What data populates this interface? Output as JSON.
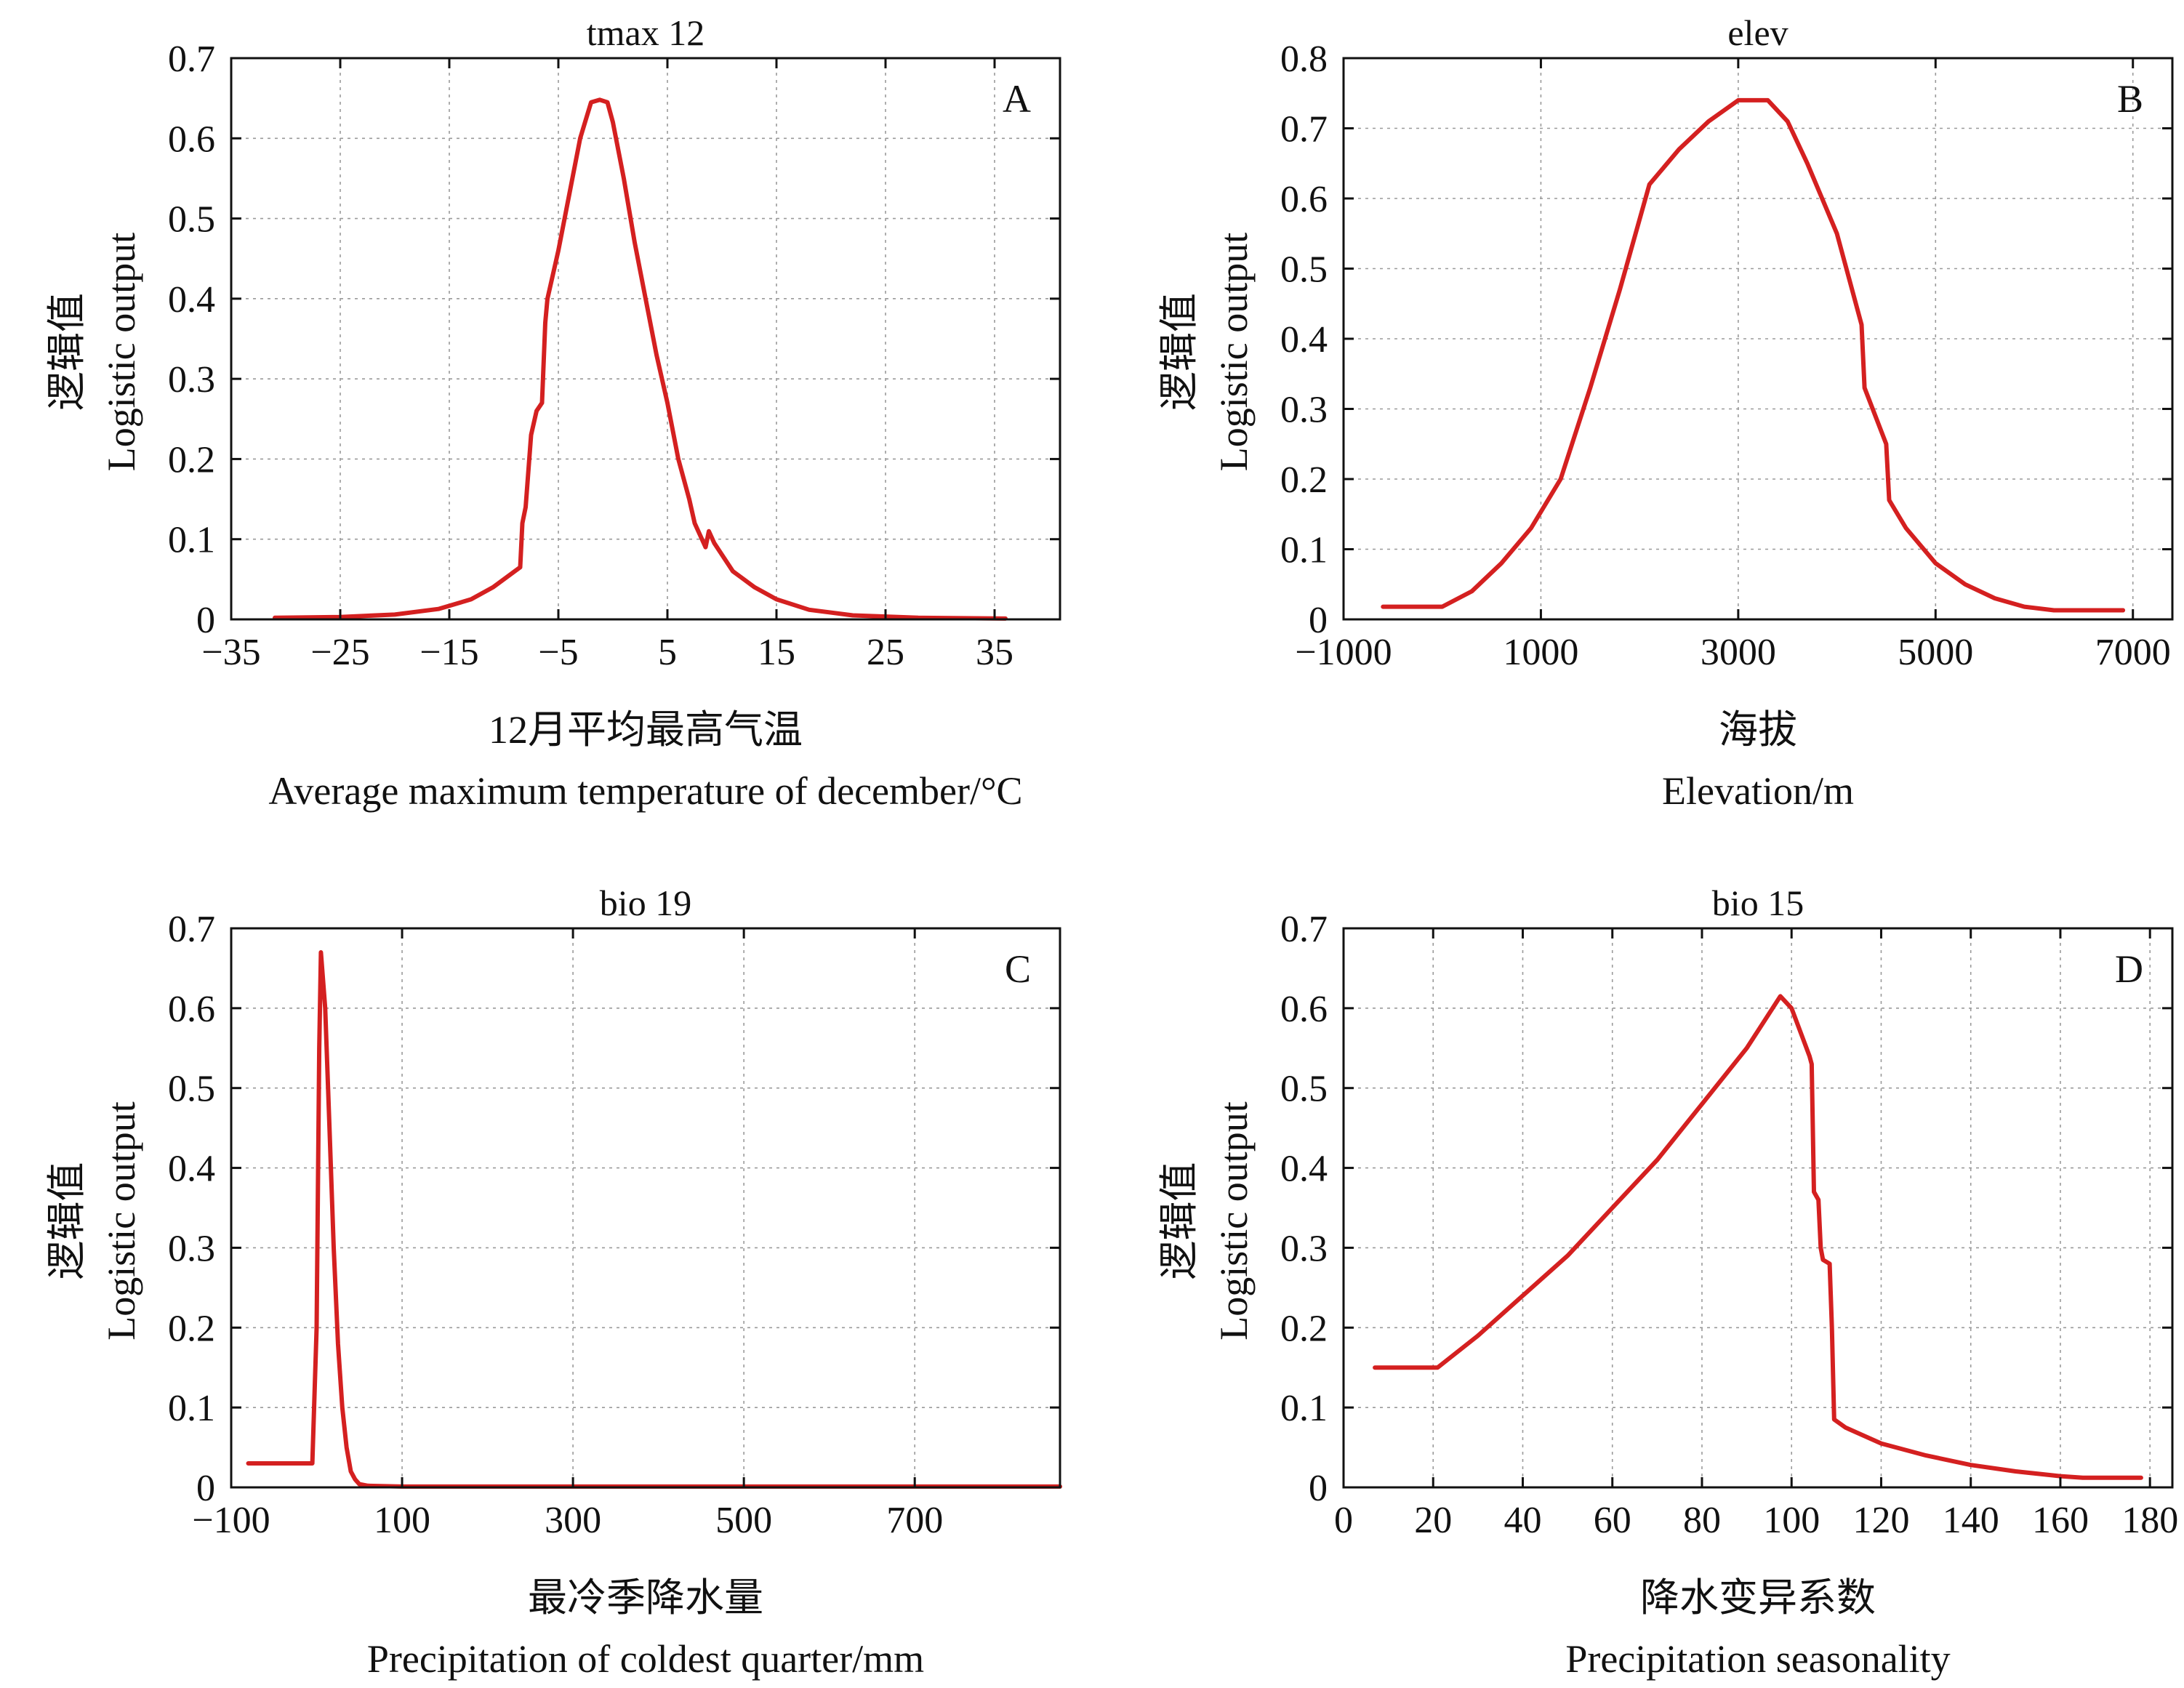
{
  "chart_data": [
    {
      "type": "line",
      "panel": "A",
      "title": "tmax 12",
      "ylabel_cn": "逻辑值",
      "ylabel_en": "Logistic output",
      "xlabel_cn": "12月平均最高气温",
      "xlabel_en": "Average maximum temperature of december/°C",
      "xlim": [
        -35,
        41
      ],
      "ylim": [
        0,
        0.7
      ],
      "xticks": [
        -35,
        -25,
        -15,
        -5,
        5,
        15,
        25,
        35
      ],
      "xtick_labels": [
        "−35",
        "−25",
        "−15",
        "−5",
        "5",
        "15",
        "25",
        "35"
      ],
      "yticks": [
        0,
        0.1,
        0.2,
        0.3,
        0.4,
        0.5,
        0.6,
        0.7
      ],
      "ytick_labels": [
        "0",
        "0.1",
        "0.2",
        "0.3",
        "0.4",
        "0.5",
        "0.6",
        "0.7"
      ],
      "grid": true,
      "line_color": "#d42020",
      "x": [
        -31,
        -25,
        -20,
        -16,
        -13,
        -11,
        -9,
        -8.5,
        -8.3,
        -8,
        -7.5,
        -7,
        -6.5,
        -6.2,
        -6,
        -5,
        -4,
        -3,
        -2,
        -1.2,
        -0.5,
        0,
        1,
        2,
        3,
        4,
        5,
        6,
        7,
        7.5,
        8.5,
        8.8,
        9.3,
        11,
        13,
        15,
        18,
        22,
        28,
        36
      ],
      "y": [
        0.002,
        0.003,
        0.006,
        0.013,
        0.025,
        0.04,
        0.06,
        0.065,
        0.12,
        0.14,
        0.23,
        0.26,
        0.27,
        0.37,
        0.4,
        0.46,
        0.53,
        0.6,
        0.645,
        0.648,
        0.645,
        0.62,
        0.55,
        0.47,
        0.4,
        0.33,
        0.27,
        0.2,
        0.15,
        0.12,
        0.09,
        0.11,
        0.095,
        0.06,
        0.04,
        0.025,
        0.012,
        0.005,
        0.002,
        0.001
      ]
    },
    {
      "type": "line",
      "panel": "B",
      "title": "elev",
      "ylabel_cn": "逻辑值",
      "ylabel_en": "Logistic output",
      "xlabel_cn": "海拔",
      "xlabel_en": "Elevation/m",
      "xlim": [
        -1000,
        7400
      ],
      "ylim": [
        0,
        0.8
      ],
      "xticks": [
        -1000,
        1000,
        3000,
        5000,
        7000
      ],
      "xtick_labels": [
        "−1000",
        "1000",
        "3000",
        "5000",
        "7000"
      ],
      "yticks": [
        0,
        0.1,
        0.2,
        0.3,
        0.4,
        0.5,
        0.6,
        0.7,
        0.8
      ],
      "ytick_labels": [
        "0",
        "0.1",
        "0.2",
        "0.3",
        "0.4",
        "0.5",
        "0.6",
        "0.7",
        "0.8"
      ],
      "grid": true,
      "line_color": "#d42020",
      "x": [
        -600,
        0,
        300,
        600,
        900,
        1200,
        1500,
        1800,
        2100,
        2400,
        2700,
        3000,
        3300,
        3500,
        3700,
        4000,
        4250,
        4280,
        4500,
        4530,
        4700,
        5000,
        5300,
        5600,
        5900,
        6200,
        6900
      ],
      "y": [
        0.018,
        0.018,
        0.04,
        0.08,
        0.13,
        0.2,
        0.33,
        0.47,
        0.62,
        0.67,
        0.71,
        0.74,
        0.74,
        0.71,
        0.65,
        0.55,
        0.42,
        0.33,
        0.25,
        0.17,
        0.13,
        0.08,
        0.05,
        0.03,
        0.018,
        0.013,
        0.013
      ]
    },
    {
      "type": "line",
      "panel": "C",
      "title": "bio 19",
      "ylabel_cn": "逻辑值",
      "ylabel_en": "Logistic output",
      "xlabel_cn": "最冷季降水量",
      "xlabel_en": "Precipitation of coldest quarter/mm",
      "xlim": [
        -100,
        870
      ],
      "ylim": [
        0,
        0.7
      ],
      "xticks": [
        -100,
        100,
        300,
        500,
        700
      ],
      "xtick_labels": [
        "−100",
        "100",
        "300",
        "500",
        "700"
      ],
      "yticks": [
        0,
        0.1,
        0.2,
        0.3,
        0.4,
        0.5,
        0.6,
        0.7
      ],
      "ytick_labels": [
        "0",
        "0.1",
        "0.2",
        "0.3",
        "0.4",
        "0.5",
        "0.6",
        "0.7"
      ],
      "grid": true,
      "line_color": "#d42020",
      "x": [
        -80,
        -5,
        0,
        3,
        5,
        10,
        15,
        20,
        25,
        30,
        35,
        40,
        45,
        50,
        60,
        100,
        870
      ],
      "y": [
        0.03,
        0.03,
        0.2,
        0.55,
        0.67,
        0.6,
        0.45,
        0.3,
        0.18,
        0.1,
        0.05,
        0.02,
        0.01,
        0.004,
        0.002,
        0.001,
        0.001
      ]
    },
    {
      "type": "line",
      "panel": "D",
      "title": "bio 15",
      "ylabel_cn": "逻辑值",
      "ylabel_en": "Logistic output",
      "xlabel_cn": "降水变异系数",
      "xlabel_en": "Precipitation seasonality",
      "xlim": [
        0,
        185
      ],
      "ylim": [
        0,
        0.7
      ],
      "xticks": [
        0,
        20,
        40,
        60,
        80,
        100,
        120,
        140,
        160,
        180
      ],
      "xtick_labels": [
        "0",
        "20",
        "40",
        "60",
        "80",
        "100",
        "120",
        "140",
        "160",
        "180"
      ],
      "yticks": [
        0,
        0.1,
        0.2,
        0.3,
        0.4,
        0.5,
        0.6,
        0.7
      ],
      "ytick_labels": [
        "0",
        "0.1",
        "0.2",
        "0.3",
        "0.4",
        "0.5",
        "0.6",
        "0.7"
      ],
      "grid": true,
      "line_color": "#d42020",
      "x": [
        7,
        21,
        30,
        40,
        50,
        60,
        70,
        80,
        90,
        97.5,
        100,
        104,
        104.5,
        105,
        106,
        106.5,
        107,
        108.5,
        109,
        109.5,
        112,
        120,
        130,
        140,
        150,
        160,
        165,
        178
      ],
      "y": [
        0.15,
        0.15,
        0.19,
        0.24,
        0.29,
        0.35,
        0.41,
        0.48,
        0.55,
        0.615,
        0.6,
        0.54,
        0.53,
        0.37,
        0.36,
        0.3,
        0.285,
        0.28,
        0.2,
        0.085,
        0.075,
        0.055,
        0.04,
        0.028,
        0.02,
        0.014,
        0.012,
        0.012
      ]
    }
  ]
}
